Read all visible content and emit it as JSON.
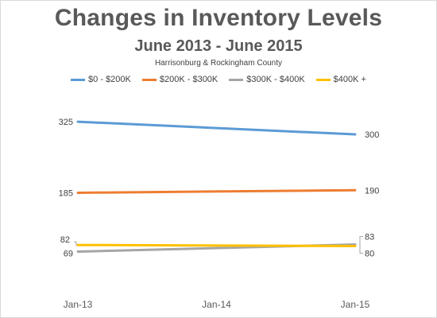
{
  "chart_data": {
    "type": "line",
    "title": "Changes in Inventory Levels",
    "subtitle": "June 2013 - June 2015",
    "subtitle2": "Harrisonburg & Rockingham County",
    "categories": [
      "Jan-13",
      "Jan-14",
      "Jan-15"
    ],
    "xlabel": "",
    "ylabel": "",
    "grid": false,
    "legend_position": "top",
    "ylim": [
      40,
      380
    ],
    "series": [
      {
        "name": "$0 - $200K",
        "color": "#5b9bd5",
        "start": 325,
        "end": 300,
        "start_label": "325",
        "end_label": "300"
      },
      {
        "name": "$200K - $300K",
        "color": "#ed7d31",
        "start": 185,
        "end": 190,
        "start_label": "185",
        "end_label": "190"
      },
      {
        "name": "$300K - $400K",
        "color": "#a5a5a5",
        "start": 69,
        "end": 83,
        "start_label": "69",
        "end_label": "83"
      },
      {
        "name": "$400K +",
        "color": "#ffc000",
        "start": 82,
        "end": 80,
        "start_label": "82",
        "end_label": "80"
      }
    ]
  }
}
